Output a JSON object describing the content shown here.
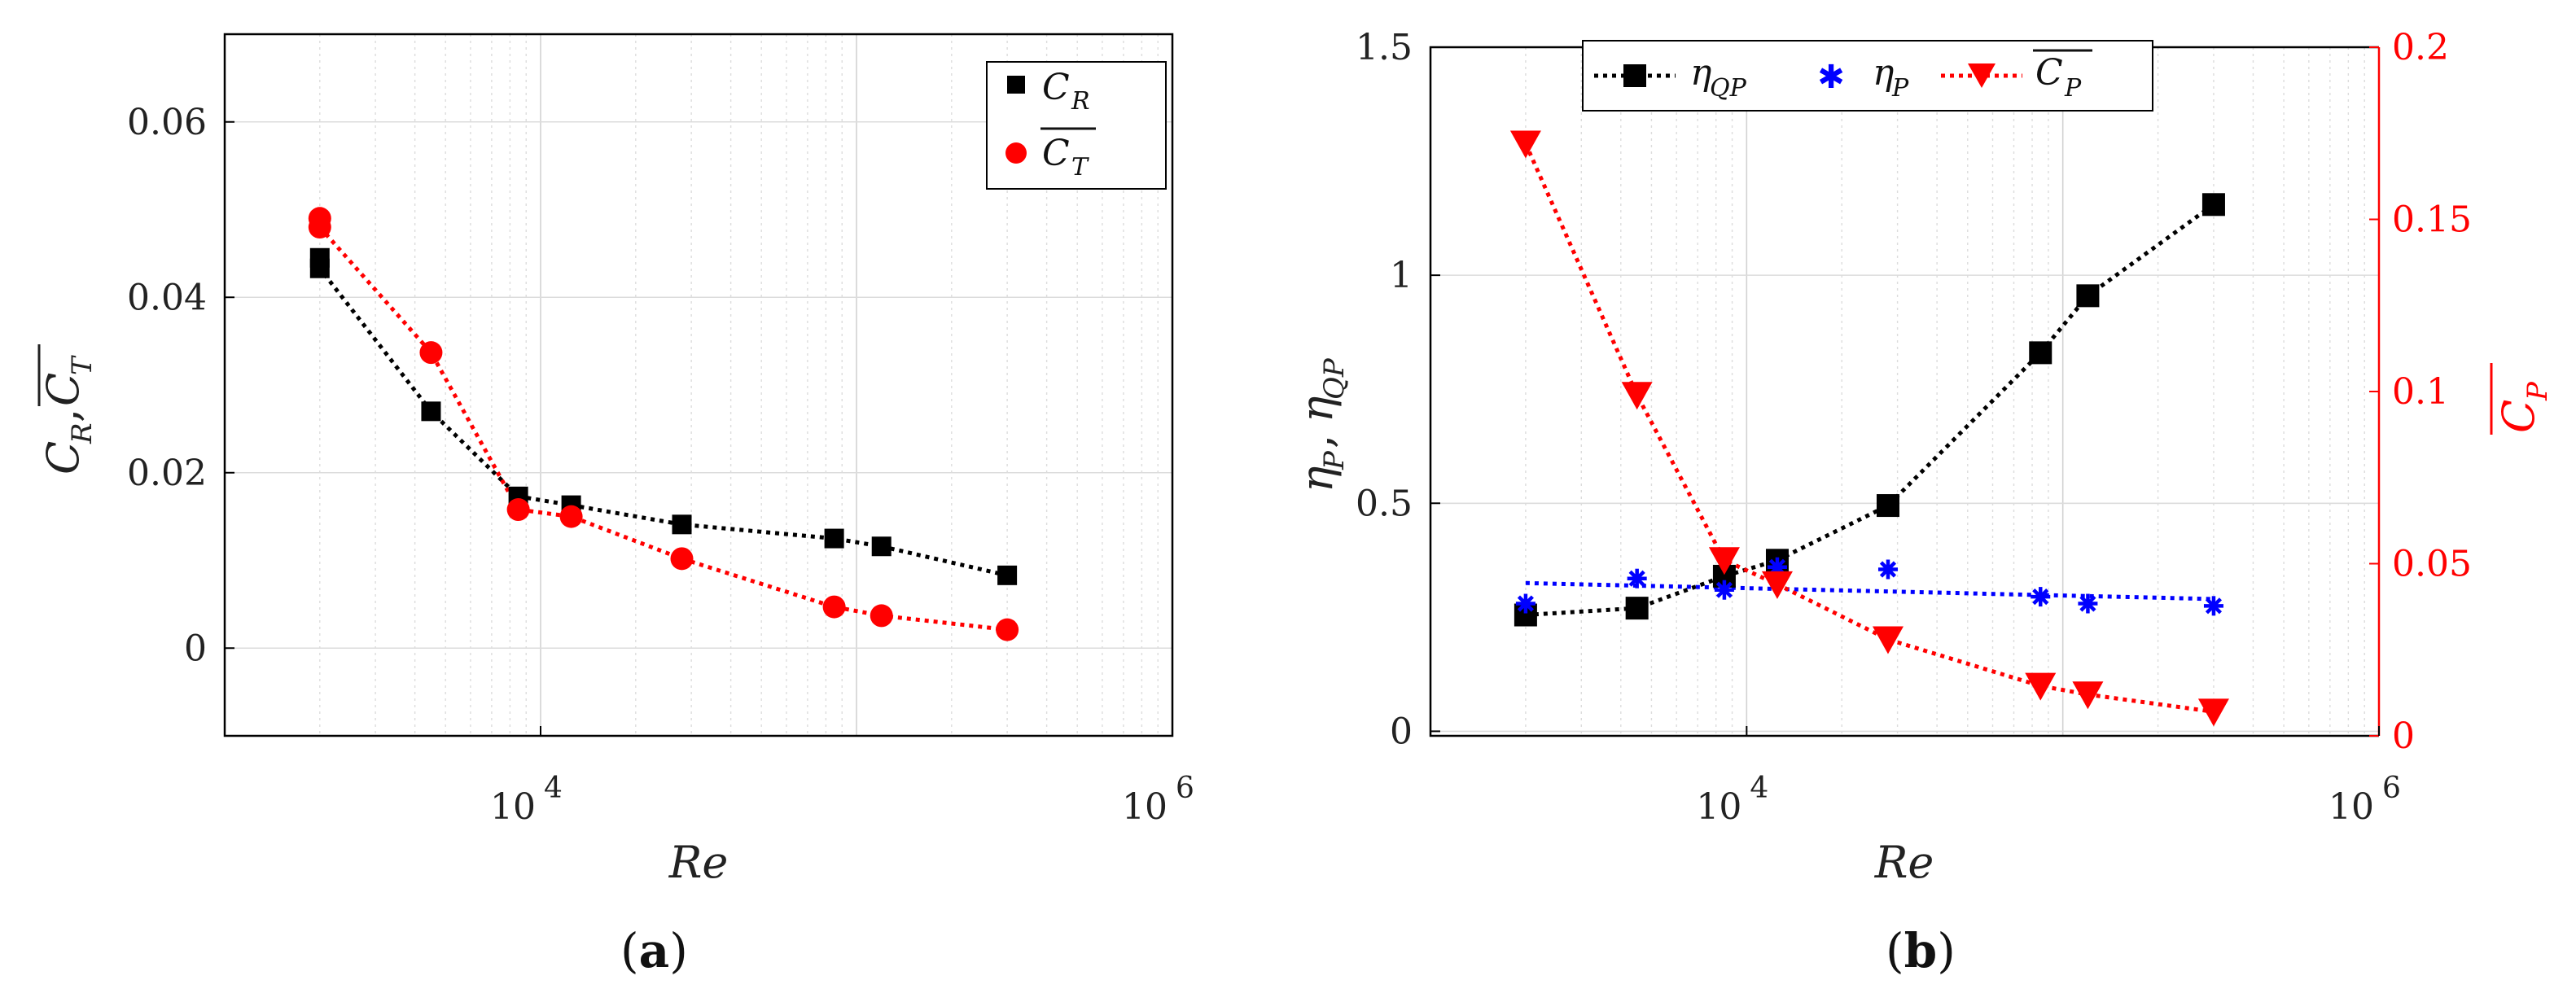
{
  "chart_data": [
    {
      "type": "scatter",
      "panel": "a",
      "caption_label": "a",
      "xlabel": "Re",
      "ylabel": "C_R, overline(C_T)",
      "xscale": "log",
      "xlim": [
        1000,
        1000000
      ],
      "ylim": [
        -0.01,
        0.07
      ],
      "xtick_labels": [
        {
          "value": 10000,
          "base": "10",
          "exp": "4"
        },
        {
          "value": 1000000,
          "base": "10",
          "exp": "6"
        }
      ],
      "ytick_labels": [
        "0",
        "0.02",
        "0.04",
        "0.06"
      ],
      "grid": true,
      "legend_position": "top-right",
      "series": [
        {
          "name": "C_R",
          "legend_base": "C",
          "legend_sub": "R",
          "overline": false,
          "marker": "square",
          "color": "#000000",
          "line_style": "dotted",
          "x": [
            2000,
            2000,
            4500,
            8500,
            12500,
            28000,
            85000,
            120000,
            300000
          ],
          "y": [
            0.0445,
            0.0433,
            0.027,
            0.0173,
            0.0163,
            0.0141,
            0.0125,
            0.0116,
            0.0083
          ]
        },
        {
          "name": "overline(C_T)",
          "legend_base": "C",
          "legend_sub": "T",
          "overline": true,
          "marker": "circle",
          "color": "#ff0000",
          "line_style": "dotted",
          "x": [
            2000,
            2000,
            4500,
            8500,
            12500,
            28000,
            85000,
            120000,
            300000
          ],
          "y": [
            0.049,
            0.048,
            0.0337,
            0.0158,
            0.015,
            0.0102,
            0.0047,
            0.0037,
            0.0021
          ]
        }
      ]
    },
    {
      "type": "line",
      "panel": "b",
      "caption_label": "b",
      "xlabel": "Re",
      "ylabel": "η_P, η_QP",
      "ylabel_right": "overline(C_P)",
      "xscale": "log",
      "xlim": [
        1000,
        1000000
      ],
      "ylim": [
        -0.01,
        1.5
      ],
      "ylim_right": [
        0,
        0.2
      ],
      "xtick_labels": [
        {
          "value": 10000,
          "base": "10",
          "exp": "4"
        },
        {
          "value": 1000000,
          "base": "10",
          "exp": "6"
        }
      ],
      "ytick_labels": [
        "0",
        "0.5",
        "1",
        "1.5"
      ],
      "ytick_labels_right": [
        "0",
        "0.05",
        "0.1",
        "0.15",
        "0.2"
      ],
      "grid": true,
      "legend_position": "top",
      "series": [
        {
          "name": "η_QP",
          "legend_base": "η",
          "legend_sub": "QP",
          "overline": false,
          "marker": "square",
          "color": "#000000",
          "line_style": "dotted",
          "axis": "left",
          "x": [
            2000,
            4500,
            8500,
            12500,
            28000,
            85000,
            120000,
            300000
          ],
          "y": [
            0.255,
            0.27,
            0.34,
            0.375,
            0.495,
            0.83,
            0.955,
            1.155
          ]
        },
        {
          "name": "η_P",
          "legend_base": "η",
          "legend_sub": "P",
          "overline": false,
          "marker": "asterisk",
          "color": "#0000ff",
          "line_style": "none",
          "axis": "left",
          "x": [
            2000,
            4500,
            8500,
            12500,
            28000,
            85000,
            120000,
            300000
          ],
          "y": [
            0.28,
            0.335,
            0.31,
            0.36,
            0.355,
            0.295,
            0.28,
            0.275
          ],
          "fit_y": [
            0.325,
            0.29
          ]
        },
        {
          "name": "overline(C_P)",
          "legend_base": "C",
          "legend_sub": "P",
          "overline": true,
          "marker": "triangle-down",
          "color": "#ff0000",
          "line_style": "dotted",
          "axis": "right",
          "x": [
            2000,
            4500,
            8500,
            12500,
            28000,
            85000,
            120000,
            300000
          ],
          "y": [
            0.172,
            0.099,
            0.051,
            0.044,
            0.028,
            0.0145,
            0.012,
            0.007
          ]
        }
      ]
    }
  ]
}
